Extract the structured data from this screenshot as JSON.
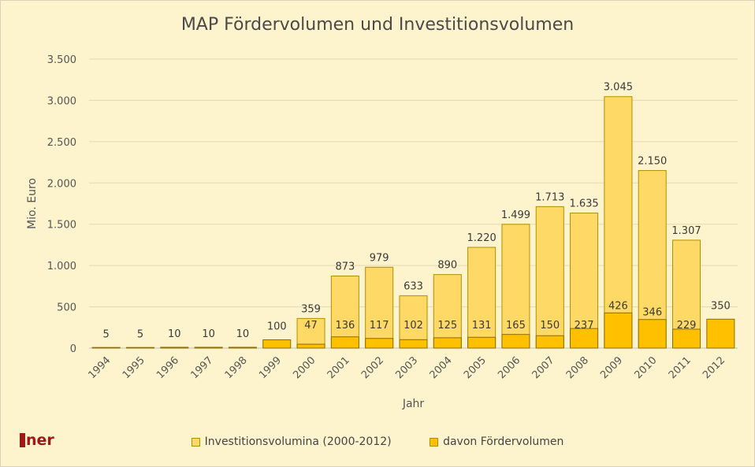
{
  "chart_data": {
    "type": "bar",
    "title": "MAP Fördervolumen und Investitionsvolumen",
    "xlabel": "Jahr",
    "ylabel": "Mio. Euro",
    "ylim": [
      0,
      3500
    ],
    "yticks": [
      0,
      500,
      1000,
      1500,
      2000,
      2500,
      3000,
      3500
    ],
    "ytick_labels": [
      "0",
      "500",
      "1.000",
      "1.500",
      "2.000",
      "2.500",
      "3.000",
      "3.500"
    ],
    "grid": true,
    "legend_position": "bottom",
    "categories": [
      "1994",
      "1995",
      "1996",
      "1997",
      "1998",
      "1999",
      "2000",
      "2001",
      "2002",
      "2003",
      "2004",
      "2005",
      "2006",
      "2007",
      "2008",
      "2009",
      "2010",
      "2011",
      "2012"
    ],
    "series": [
      {
        "name": "Investitionsvolumina (2000-2012)",
        "color": "#ffd966",
        "values": [
          null,
          null,
          null,
          null,
          null,
          null,
          359,
          873,
          979,
          633,
          890,
          1220,
          1499,
          1713,
          1635,
          3045,
          2150,
          1307,
          null
        ],
        "labels": [
          null,
          null,
          null,
          null,
          null,
          null,
          "359",
          "873",
          "979",
          "633",
          "890",
          "1.220",
          "1.499",
          "1.713",
          "1.635",
          "3.045",
          "2.150",
          "1.307",
          null
        ]
      },
      {
        "name": "davon Fördervolumen",
        "color": "#ffc000",
        "values": [
          5,
          5,
          10,
          10,
          10,
          100,
          47,
          136,
          117,
          102,
          125,
          131,
          165,
          150,
          237,
          426,
          346,
          229,
          350
        ],
        "labels": [
          "5",
          "5",
          "10",
          "10",
          "10",
          "100",
          "47",
          "136",
          "117",
          "102",
          "125",
          "131",
          "165",
          "150",
          "237",
          "426",
          "346",
          "229",
          "350"
        ]
      }
    ]
  },
  "logo_text": "ner"
}
